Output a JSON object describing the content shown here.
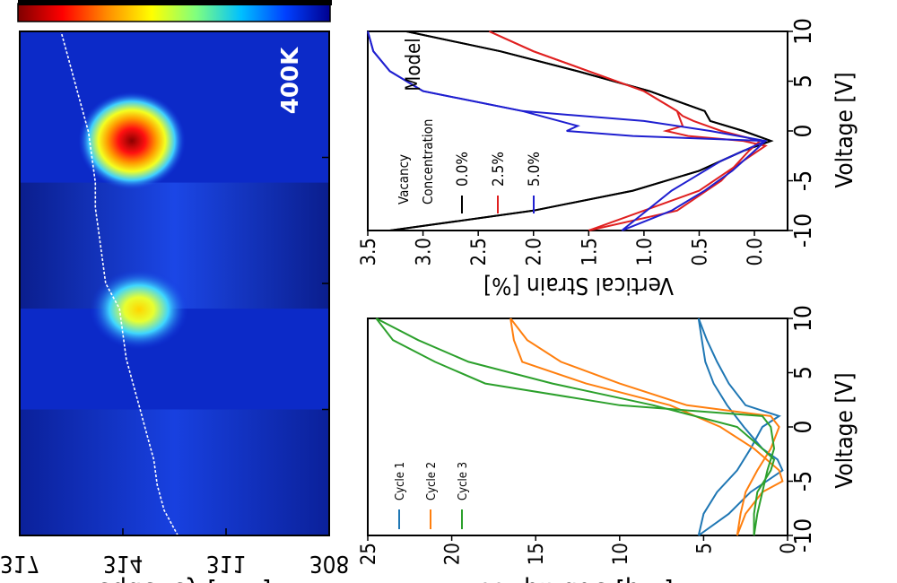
{
  "chart_data": [
    {
      "type": "heatmap",
      "panel": "frequency-map",
      "annotation": "400K",
      "y_tick_labels": [
        "317",
        "314",
        "311",
        "308"
      ],
      "ylabel_partial": "Frequency [kHz]",
      "ylim": [
        308,
        317
      ],
      "colorscale": [
        "#7f0000",
        "#ff0000",
        "#ff8c00",
        "#ffff00",
        "#7fff7f",
        "#00c0ff",
        "#0040ff",
        "#00008f"
      ],
      "bright_bands": [
        {
          "voltage_range": [
            -1,
            4
          ],
          "intensity": 1.0
        },
        {
          "voltage_range": [
            -10,
            -5
          ],
          "intensity": 0.6
        }
      ],
      "resonance_trace": [
        [
          -10,
          312.4
        ],
        [
          -9,
          312.8
        ],
        [
          -8,
          313.0
        ],
        [
          -7,
          313.1
        ],
        [
          -6,
          313.3
        ],
        [
          -5,
          313.5
        ],
        [
          -4,
          313.7
        ],
        [
          -3,
          313.9
        ],
        [
          -2,
          314.0
        ],
        [
          -1,
          314.1
        ],
        [
          0,
          314.5
        ],
        [
          1,
          314.6
        ],
        [
          2,
          314.7
        ],
        [
          3,
          314.8
        ],
        [
          4,
          314.8
        ],
        [
          5,
          314.9
        ],
        [
          6,
          315.0
        ],
        [
          7,
          315.2
        ],
        [
          8,
          315.4
        ],
        [
          9,
          315.6
        ],
        [
          10,
          315.8
        ]
      ]
    },
    {
      "type": "line",
      "panel": "model-strain",
      "xlabel": "Voltage [V]",
      "ylabel": "Vertical Strain [%]",
      "xlim": [
        -10,
        10
      ],
      "ylim": [
        -0.3,
        3.5
      ],
      "x_ticks": [
        "-10",
        "-5",
        "0",
        "5",
        "10"
      ],
      "y_ticks": [
        "0.0",
        "0.5",
        "1.0",
        "1.5",
        "2.0",
        "2.5",
        "3.0",
        "3.5"
      ],
      "legend_title_1": "Vacancy",
      "legend_title_2": "Concentration",
      "annotation": "Model",
      "series": [
        {
          "name": "0.0%",
          "color": "#000000",
          "up": [
            [
              -10,
              3.3
            ],
            [
              -8,
              2.0
            ],
            [
              -6,
              1.1
            ],
            [
              -4,
              0.5
            ],
            [
              -2,
              0.1
            ],
            [
              -1,
              -0.15
            ],
            [
              0,
              0.1
            ],
            [
              1,
              0.4
            ],
            [
              2,
              0.45
            ],
            [
              4,
              0.95
            ],
            [
              6,
              1.6
            ],
            [
              8,
              2.3
            ],
            [
              10,
              3.15
            ]
          ],
          "down": [
            [
              10,
              3.15
            ],
            [
              8,
              2.3
            ],
            [
              6,
              1.6
            ],
            [
              4,
              0.95
            ],
            [
              2,
              0.45
            ],
            [
              1,
              0.4
            ],
            [
              0,
              0.1
            ],
            [
              -1,
              -0.15
            ],
            [
              -2,
              0.1
            ],
            [
              -4,
              0.5
            ],
            [
              -6,
              1.1
            ],
            [
              -8,
              2.0
            ],
            [
              -10,
              3.3
            ]
          ]
        },
        {
          "name": "2.5%",
          "color": "#e02020",
          "up": [
            [
              -10,
              1.5
            ],
            [
              -8,
              0.7
            ],
            [
              -5,
              0.3
            ],
            [
              -2,
              0.05
            ],
            [
              -1,
              -0.05
            ],
            [
              0,
              0.3
            ],
            [
              1,
              0.55
            ],
            [
              1.5,
              0.65
            ],
            [
              2,
              0.7
            ],
            [
              4,
              1.0
            ],
            [
              6,
              1.5
            ],
            [
              8,
              2.0
            ],
            [
              10,
              2.4
            ]
          ],
          "down": [
            [
              10,
              2.4
            ],
            [
              8,
              2.0
            ],
            [
              6,
              1.5
            ],
            [
              4,
              1.0
            ],
            [
              2,
              0.7
            ],
            [
              0.5,
              0.65
            ],
            [
              0,
              0.8
            ],
            [
              -0.5,
              0.6
            ],
            [
              -1,
              0.1
            ],
            [
              -1.5,
              -0.1
            ],
            [
              -3,
              0.1
            ],
            [
              -6,
              0.5
            ],
            [
              -10,
              1.5
            ]
          ]
        },
        {
          "name": "5.0%",
          "color": "#1f1fd0",
          "up": [
            [
              -10,
              1.2
            ],
            [
              -8,
              0.75
            ],
            [
              -6,
              0.45
            ],
            [
              -4,
              0.2
            ],
            [
              -2,
              0.0
            ],
            [
              -1,
              -0.1
            ],
            [
              0,
              0.4
            ],
            [
              1,
              1.0
            ],
            [
              2,
              2.1
            ],
            [
              4,
              3.0
            ],
            [
              6,
              3.3
            ],
            [
              8,
              3.45
            ],
            [
              10,
              3.5
            ]
          ],
          "down": [
            [
              10,
              3.5
            ],
            [
              8,
              3.45
            ],
            [
              6,
              3.3
            ],
            [
              4,
              3.0
            ],
            [
              2,
              2.1
            ],
            [
              0.5,
              1.6
            ],
            [
              0,
              1.7
            ],
            [
              -0.5,
              1.1
            ],
            [
              -1,
              -0.1
            ],
            [
              -3,
              0.3
            ],
            [
              -6,
              0.75
            ],
            [
              -10,
              1.2
            ]
          ]
        }
      ]
    },
    {
      "type": "line",
      "panel": "measured-amplitude",
      "xlabel": "Voltage [V]",
      "ylabel": "Amplitude [pm]",
      "xlim": [
        -10,
        10
      ],
      "ylim": [
        0,
        25
      ],
      "x_ticks": [
        "-10",
        "-5",
        "0",
        "5",
        "10"
      ],
      "y_ticks": [
        "0",
        "5",
        "10",
        "15",
        "20",
        "25"
      ],
      "series": [
        {
          "name": "Cycle 1",
          "color": "#1f77b4",
          "up": [
            [
              -10,
              5.3
            ],
            [
              -8,
              5.0
            ],
            [
              -6,
              4.2
            ],
            [
              -4,
              3.0
            ],
            [
              -2,
              2.2
            ],
            [
              0,
              1.5
            ],
            [
              1,
              0.5
            ],
            [
              2,
              2.5
            ],
            [
              4,
              3.5
            ],
            [
              6,
              4.2
            ],
            [
              8,
              4.8
            ],
            [
              10,
              5.3
            ]
          ],
          "down": [
            [
              10,
              5.3
            ],
            [
              8,
              5.1
            ],
            [
              6,
              4.9
            ],
            [
              4,
              4.4
            ],
            [
              2,
              3.6
            ],
            [
              0,
              2.6
            ],
            [
              -2,
              1.5
            ],
            [
              -3,
              0.6
            ],
            [
              -4,
              0.3
            ],
            [
              -6,
              2.2
            ],
            [
              -8,
              3.5
            ],
            [
              -10,
              5.3
            ]
          ]
        },
        {
          "name": "Cycle 2",
          "color": "#ff7f0e",
          "up": [
            [
              -10,
              3.0
            ],
            [
              -8,
              2.8
            ],
            [
              -6,
              2.5
            ],
            [
              -4,
              1.8
            ],
            [
              -2,
              1.0
            ],
            [
              0,
              0.5
            ],
            [
              1,
              1.0
            ],
            [
              2,
              6.0
            ],
            [
              4,
              10.0
            ],
            [
              6,
              13.5
            ],
            [
              8,
              15.5
            ],
            [
              10,
              16.5
            ]
          ],
          "down": [
            [
              10,
              16.5
            ],
            [
              8,
              16.3
            ],
            [
              6,
              15.8
            ],
            [
              4,
              12.0
            ],
            [
              2,
              7.0
            ],
            [
              0,
              4.0
            ],
            [
              -2,
              2.0
            ],
            [
              -4,
              0.5
            ],
            [
              -5,
              0.3
            ],
            [
              -6,
              1.5
            ],
            [
              -8,
              2.5
            ],
            [
              -10,
              3.0
            ]
          ]
        },
        {
          "name": "Cycle 3",
          "color": "#2ca02c",
          "up": [
            [
              -10,
              2.0
            ],
            [
              -8,
              1.8
            ],
            [
              -6,
              1.5
            ],
            [
              -4,
              1.2
            ],
            [
              -2,
              0.8
            ],
            [
              0,
              1.0
            ],
            [
              1,
              1.5
            ],
            [
              2,
              10.0
            ],
            [
              4,
              18.0
            ],
            [
              6,
              21.0
            ],
            [
              8,
              23.5
            ],
            [
              10,
              24.5
            ]
          ],
          "down": [
            [
              10,
              24.5
            ],
            [
              8,
              22.0
            ],
            [
              6,
              19.0
            ],
            [
              4,
              14.0
            ],
            [
              2,
              8.0
            ],
            [
              0,
              3.0
            ],
            [
              -2,
              1.5
            ],
            [
              -3,
              0.8
            ],
            [
              -4,
              1.0
            ],
            [
              -6,
              1.8
            ],
            [
              -8,
              2.0
            ],
            [
              -10,
              2.0
            ]
          ]
        }
      ]
    }
  ]
}
